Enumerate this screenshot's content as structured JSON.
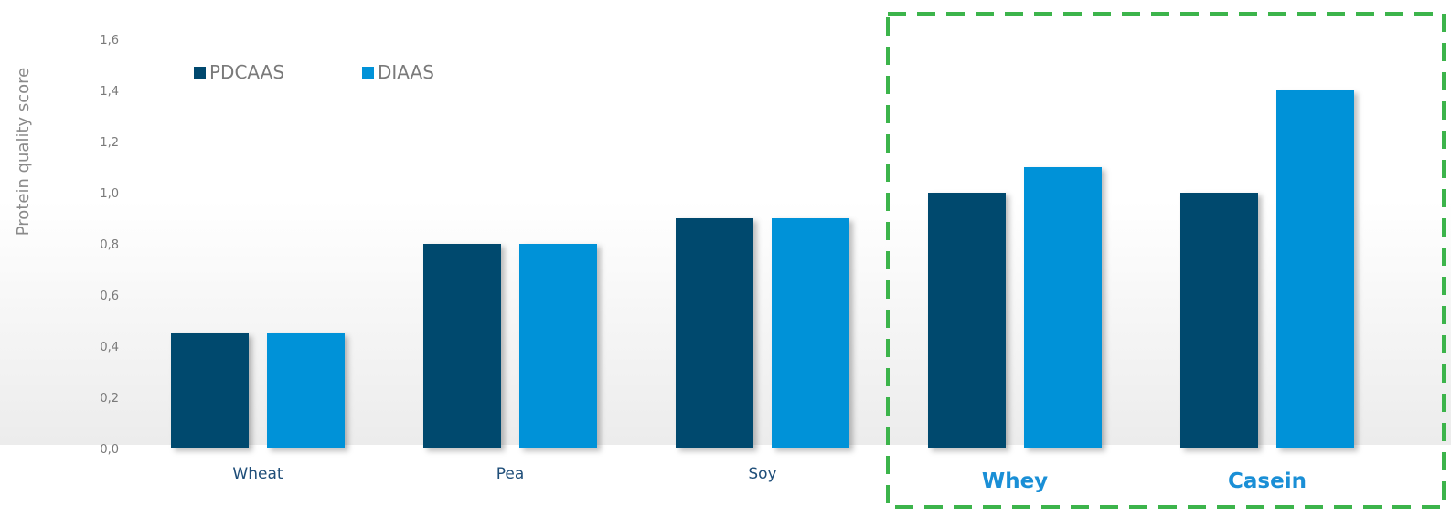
{
  "chart_data": {
    "type": "bar",
    "categories": [
      "Wheat",
      "Pea",
      "Soy",
      "Whey",
      "Casein"
    ],
    "highlighted_categories": [
      "Whey",
      "Casein"
    ],
    "series": [
      {
        "name": "PDCAAS",
        "values": [
          0.45,
          0.8,
          0.9,
          1.0,
          1.0
        ],
        "color": "#00486e"
      },
      {
        "name": "DIAAS",
        "values": [
          0.45,
          0.8,
          0.9,
          1.1,
          1.4
        ],
        "color": "#0092d8"
      }
    ],
    "title": "",
    "xlabel": "",
    "ylabel": "Protein quality score",
    "ylim": [
      0,
      1.6
    ],
    "yticks": [
      "0,0",
      "0,2",
      "0,4",
      "0,6",
      "0,8",
      "1,0",
      "1,2",
      "1,4",
      "1,6"
    ],
    "grid": false,
    "legend_position": "top-left",
    "highlight_box_color": "#3cb44b",
    "highlight_label_color": "#1a8fd6"
  }
}
